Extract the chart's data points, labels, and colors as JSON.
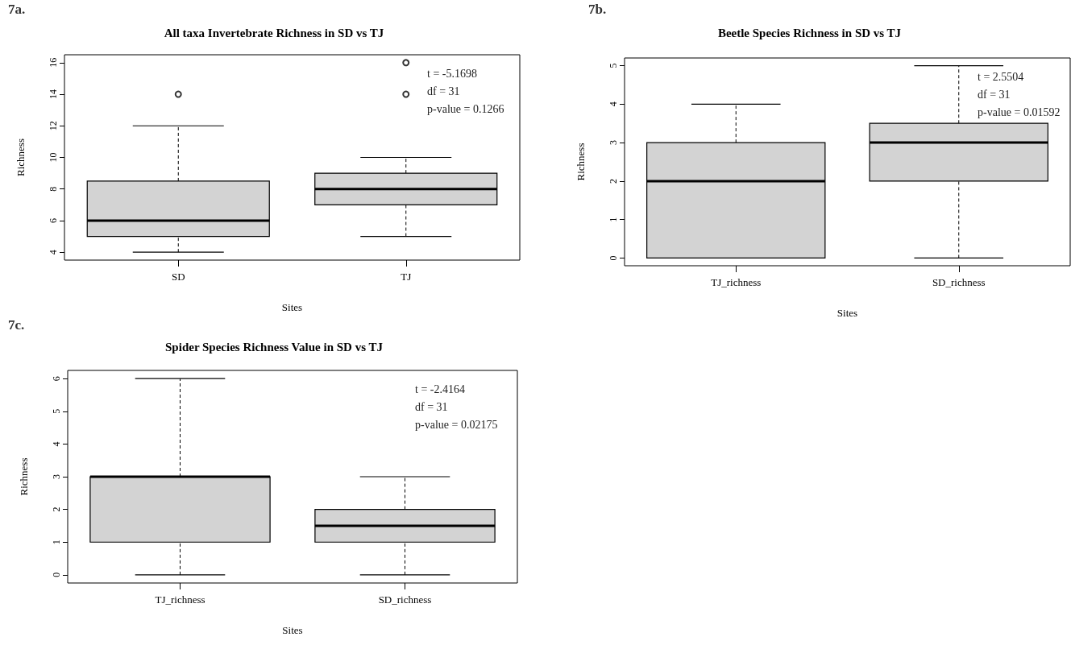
{
  "chart_data": [
    {
      "type": "box",
      "title": "All taxa Invertebrate Richness in SD vs TJ",
      "xlabel": "Sites",
      "ylabel": "Richness",
      "categories": [
        "SD",
        "TJ"
      ],
      "boxes": [
        {
          "low": 4,
          "q1": 5,
          "median": 6,
          "q3": 8.5,
          "high": 12,
          "outliers": [
            14
          ]
        },
        {
          "low": 5,
          "q1": 7,
          "median": 8,
          "q3": 9,
          "high": 10,
          "outliers": [
            14,
            16
          ]
        }
      ],
      "color": "#d3d3d3",
      "ylim": [
        3.5,
        16.5
      ],
      "yticks": [
        4,
        6,
        8,
        10,
        12,
        14,
        16
      ],
      "grid": false,
      "annotations": [
        "7a.",
        "t = -5.1698",
        "df = 31",
        "p-value = 0.1266"
      ]
    },
    {
      "type": "box",
      "title": "Beetle Species Richness in SD vs TJ",
      "xlabel": "Sites",
      "ylabel": "Richness",
      "categories": [
        "TJ_richness",
        "SD_richness"
      ],
      "boxes": [
        {
          "low": 0,
          "q1": 0,
          "median": 2,
          "q3": 3,
          "high": 4
        },
        {
          "low": 0,
          "q1": 2,
          "median": 3,
          "q3": 3.5,
          "high": 5
        }
      ],
      "color": "#d3d3d3",
      "ylim": [
        -0.2,
        5.2
      ],
      "yticks": [
        0,
        1,
        2,
        3,
        4,
        5
      ],
      "grid": false,
      "annotations": [
        "7b.",
        "t = 2.5504",
        "df = 31",
        "p-value = 0.01592"
      ]
    },
    {
      "type": "box",
      "title": "Spider Species Richness Value in SD vs TJ",
      "xlabel": "Sites",
      "ylabel": "Richness",
      "categories": [
        "TJ_richness",
        "SD_richness"
      ],
      "boxes": [
        {
          "low": 0,
          "q1": 1,
          "median": 3,
          "q3": 3,
          "high": 6
        },
        {
          "low": 0,
          "q1": 1,
          "median": 1.5,
          "q3": 2,
          "high": 3
        }
      ],
      "color": "#d3d3d3",
      "ylim": [
        -0.25,
        6.25
      ],
      "yticks": [
        0,
        1,
        2,
        3,
        4,
        5,
        6
      ],
      "grid": false,
      "annotations": [
        "7c.",
        "t = -2.4164",
        "df = 31",
        "p-value = 0.02175"
      ]
    }
  ]
}
